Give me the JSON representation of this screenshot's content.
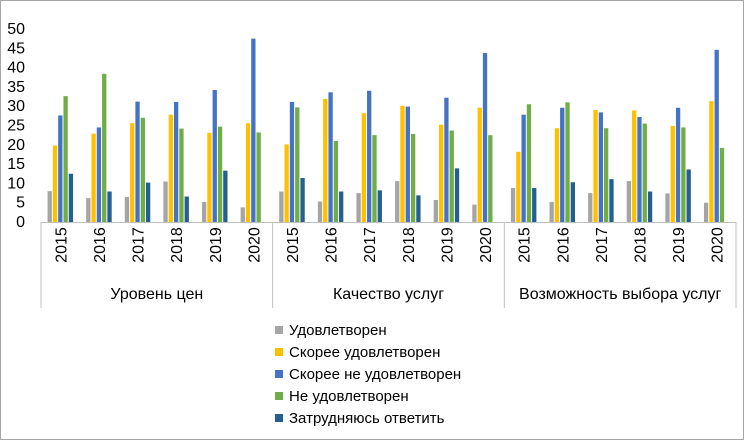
{
  "chart_data": {
    "type": "bar",
    "groups": [
      "Уровень цен",
      "Качество услуг",
      "Возможность выбора услуг"
    ],
    "categories": [
      "2015",
      "2016",
      "2017",
      "2018",
      "2019",
      "2020"
    ],
    "ylim": [
      0,
      50
    ],
    "yticks": [
      "0",
      "5",
      "10",
      "15",
      "20",
      "25",
      "30",
      "35",
      "40",
      "45",
      "50"
    ],
    "grid": false,
    "legend_position": "bottom",
    "series": [
      {
        "name": "Удовлетворен",
        "color": "#a5a5a5",
        "values": [
          [
            8,
            6.2,
            6.5,
            10.5,
            5.2,
            3.8
          ],
          [
            7.9,
            5.3,
            7.5,
            10.6,
            5.7,
            4.5
          ],
          [
            8.8,
            5.2,
            7.5,
            10.6,
            7.4,
            5
          ]
        ]
      },
      {
        "name": "Скорее удовлетворен",
        "color": "#ffc000",
        "values": [
          [
            19.8,
            22.9,
            25.6,
            27.8,
            23.1,
            25.6
          ],
          [
            20.1,
            31.9,
            28.2,
            30.1,
            25.2,
            29.6
          ],
          [
            18.2,
            24.3,
            29,
            28.9,
            24.9,
            31.3
          ]
        ]
      },
      {
        "name": "Скорее не удовлетворен",
        "color": "#4472c4",
        "values": [
          [
            27.6,
            24.5,
            31.2,
            31.1,
            34.2,
            47.5
          ],
          [
            31.1,
            33.6,
            34,
            29.9,
            32.2,
            43.8
          ],
          [
            27.8,
            29.6,
            28.4,
            27.2,
            29.6,
            44.6
          ]
        ]
      },
      {
        "name": "Не удовлетворен",
        "color": "#70ad47",
        "values": [
          [
            32.6,
            38.4,
            27,
            24.2,
            24.7,
            23.2
          ],
          [
            29.7,
            21,
            22.5,
            22.8,
            23.7,
            22.5
          ],
          [
            30.5,
            31,
            24.3,
            25.5,
            24.5,
            19.2
          ]
        ]
      },
      {
        "name": "Затрудняюсь ответить",
        "color": "#255e91",
        "values": [
          [
            12.5,
            7.9,
            10.2,
            6.6,
            13.3,
            0
          ],
          [
            11.4,
            7.9,
            8.2,
            6.9,
            13.9,
            0
          ],
          [
            8.8,
            10.3,
            11.1,
            7.9,
            13.6,
            0
          ]
        ]
      }
    ]
  }
}
